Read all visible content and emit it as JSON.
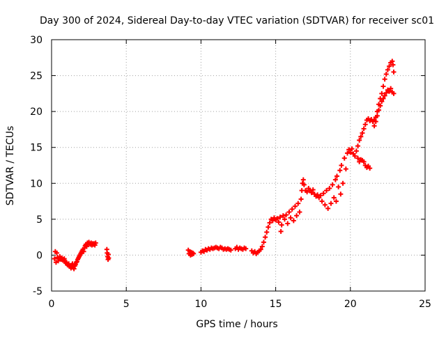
{
  "chart_data": {
    "type": "scatter",
    "title": "Day 300 of 2024, Sidereal Day-to-day VTEC variation (SDTVAR) for receiver sc01",
    "xlabel": "GPS time / hours",
    "ylabel": "SDTVAR / TECUs",
    "xlim": [
      0,
      25
    ],
    "ylim": [
      -5,
      30
    ],
    "xticks": [
      0,
      5,
      10,
      15,
      20,
      25
    ],
    "yticks": [
      -5,
      0,
      5,
      10,
      15,
      20,
      25,
      30
    ],
    "grid": true,
    "marker": "+",
    "color": "#ff0000",
    "series": [
      {
        "name": "sc01",
        "points": [
          [
            0.2,
            -0.5
          ],
          [
            0.25,
            0.5
          ],
          [
            0.3,
            -1.0
          ],
          [
            0.35,
            0.3
          ],
          [
            0.4,
            -0.3
          ],
          [
            0.45,
            -0.8
          ],
          [
            0.5,
            -0.5
          ],
          [
            0.55,
            -0.2
          ],
          [
            0.6,
            -0.4
          ],
          [
            0.65,
            -0.6
          ],
          [
            0.7,
            -0.4
          ],
          [
            0.75,
            -0.7
          ],
          [
            0.8,
            -0.6
          ],
          [
            0.85,
            -0.5
          ],
          [
            0.9,
            -0.9
          ],
          [
            0.95,
            -1.1
          ],
          [
            1.0,
            -1.0
          ],
          [
            1.05,
            -1.3
          ],
          [
            1.1,
            -1.4
          ],
          [
            1.15,
            -1.2
          ],
          [
            1.2,
            -1.5
          ],
          [
            1.25,
            -1.6
          ],
          [
            1.3,
            -1.8
          ],
          [
            1.35,
            -1.4
          ],
          [
            1.4,
            -1.2
          ],
          [
            1.45,
            -1.7
          ],
          [
            1.5,
            -1.9
          ],
          [
            1.55,
            -1.5
          ],
          [
            1.6,
            -1.3
          ],
          [
            1.65,
            -1.0
          ],
          [
            1.7,
            -0.9
          ],
          [
            1.75,
            -0.6
          ],
          [
            1.8,
            -0.4
          ],
          [
            1.85,
            -0.2
          ],
          [
            1.9,
            0.0
          ],
          [
            1.95,
            0.2
          ],
          [
            2.0,
            0.4
          ],
          [
            2.05,
            0.6
          ],
          [
            2.1,
            0.8
          ],
          [
            2.15,
            0.5
          ],
          [
            2.2,
            1.0
          ],
          [
            2.25,
            1.3
          ],
          [
            2.3,
            1.5
          ],
          [
            2.35,
            1.2
          ],
          [
            2.4,
            1.7
          ],
          [
            2.45,
            1.5
          ],
          [
            2.5,
            1.8
          ],
          [
            2.55,
            1.6
          ],
          [
            2.6,
            1.5
          ],
          [
            2.65,
            1.7
          ],
          [
            2.7,
            1.4
          ],
          [
            2.75,
            1.6
          ],
          [
            2.8,
            1.5
          ],
          [
            2.85,
            1.6
          ],
          [
            2.9,
            1.4
          ],
          [
            2.95,
            1.7
          ],
          [
            3.7,
            0.8
          ],
          [
            3.72,
            0.3
          ],
          [
            3.75,
            -0.2
          ],
          [
            3.78,
            -0.6
          ],
          [
            3.8,
            0.1
          ],
          [
            3.82,
            -0.4
          ],
          [
            9.15,
            0.7
          ],
          [
            9.2,
            0.2
          ],
          [
            9.25,
            0.5
          ],
          [
            9.3,
            0.0
          ],
          [
            9.35,
            0.4
          ],
          [
            9.4,
            0.1
          ],
          [
            9.45,
            0.3
          ],
          [
            9.5,
            0.2
          ],
          [
            10.0,
            0.4
          ],
          [
            10.1,
            0.6
          ],
          [
            10.2,
            0.5
          ],
          [
            10.3,
            0.8
          ],
          [
            10.4,
            0.7
          ],
          [
            10.5,
            0.9
          ],
          [
            10.6,
            0.8
          ],
          [
            10.7,
            1.0
          ],
          [
            10.8,
            0.9
          ],
          [
            10.9,
            1.0
          ],
          [
            11.0,
            1.1
          ],
          [
            11.1,
            1.0
          ],
          [
            11.2,
            0.9
          ],
          [
            11.3,
            1.1
          ],
          [
            11.4,
            1.0
          ],
          [
            11.5,
            0.8
          ],
          [
            11.6,
            0.9
          ],
          [
            11.7,
            0.8
          ],
          [
            11.8,
            0.9
          ],
          [
            11.9,
            0.8
          ],
          [
            12.0,
            0.7
          ],
          [
            12.3,
            0.9
          ],
          [
            12.4,
            1.1
          ],
          [
            12.5,
            0.8
          ],
          [
            12.6,
            1.0
          ],
          [
            12.7,
            0.9
          ],
          [
            12.8,
            0.8
          ],
          [
            12.9,
            1.0
          ],
          [
            13.0,
            0.9
          ],
          [
            13.4,
            0.6
          ],
          [
            13.5,
            0.3
          ],
          [
            13.6,
            0.5
          ],
          [
            13.7,
            0.2
          ],
          [
            13.8,
            0.4
          ],
          [
            13.9,
            0.6
          ],
          [
            14.0,
            0.8
          ],
          [
            14.1,
            1.2
          ],
          [
            14.2,
            1.8
          ],
          [
            14.3,
            2.5
          ],
          [
            14.4,
            3.2
          ],
          [
            14.5,
            3.9
          ],
          [
            14.6,
            4.5
          ],
          [
            14.7,
            5.0
          ],
          [
            14.8,
            4.8
          ],
          [
            14.9,
            5.2
          ],
          [
            15.0,
            4.9
          ],
          [
            15.1,
            5.1
          ],
          [
            15.2,
            4.6
          ],
          [
            15.3,
            5.3
          ],
          [
            15.35,
            3.3
          ],
          [
            15.4,
            4.2
          ],
          [
            15.5,
            5.5
          ],
          [
            15.6,
            5.0
          ],
          [
            15.7,
            5.6
          ],
          [
            15.8,
            4.4
          ],
          [
            15.9,
            6.0
          ],
          [
            16.0,
            5.2
          ],
          [
            16.1,
            6.4
          ],
          [
            16.2,
            4.8
          ],
          [
            16.3,
            6.8
          ],
          [
            16.4,
            5.5
          ],
          [
            16.5,
            7.2
          ],
          [
            16.6,
            6.0
          ],
          [
            16.7,
            7.8
          ],
          [
            16.75,
            9.0
          ],
          [
            16.8,
            10.0
          ],
          [
            16.85,
            10.5
          ],
          [
            16.9,
            9.8
          ],
          [
            17.0,
            9.0
          ],
          [
            17.1,
            8.8
          ],
          [
            17.2,
            9.3
          ],
          [
            17.3,
            9.0
          ],
          [
            17.4,
            8.7
          ],
          [
            17.5,
            9.1
          ],
          [
            17.6,
            8.5
          ],
          [
            17.7,
            8.2
          ],
          [
            17.8,
            8.4
          ],
          [
            17.9,
            8.0
          ],
          [
            18.0,
            8.3
          ],
          [
            18.1,
            7.5
          ],
          [
            18.2,
            8.6
          ],
          [
            18.3,
            7.0
          ],
          [
            18.4,
            9.0
          ],
          [
            18.5,
            6.5
          ],
          [
            18.6,
            9.3
          ],
          [
            18.7,
            7.2
          ],
          [
            18.8,
            9.8
          ],
          [
            18.9,
            8.0
          ],
          [
            19.0,
            10.5
          ],
          [
            19.05,
            7.5
          ],
          [
            19.1,
            11.0
          ],
          [
            19.2,
            9.5
          ],
          [
            19.3,
            11.8
          ],
          [
            19.35,
            8.5
          ],
          [
            19.4,
            12.5
          ],
          [
            19.5,
            10.0
          ],
          [
            19.6,
            13.5
          ],
          [
            19.7,
            12.0
          ],
          [
            19.8,
            14.2
          ],
          [
            19.9,
            14.7
          ],
          [
            20.0,
            14.3
          ],
          [
            20.1,
            14.8
          ],
          [
            20.2,
            14.1
          ],
          [
            20.3,
            13.8
          ],
          [
            20.4,
            14.5
          ],
          [
            20.5,
            13.5
          ],
          [
            20.6,
            13.0
          ],
          [
            20.7,
            13.3
          ],
          [
            20.8,
            13.2
          ],
          [
            20.9,
            13.0
          ],
          [
            21.0,
            12.5
          ],
          [
            21.1,
            12.2
          ],
          [
            21.2,
            12.4
          ],
          [
            21.3,
            12.1
          ],
          [
            20.5,
            15.2
          ],
          [
            20.6,
            16.0
          ],
          [
            20.7,
            16.5
          ],
          [
            20.8,
            17.0
          ],
          [
            20.9,
            17.6
          ],
          [
            21.0,
            18.2
          ],
          [
            21.1,
            18.8
          ],
          [
            21.2,
            19.0
          ],
          [
            21.3,
            18.7
          ],
          [
            21.4,
            18.9
          ],
          [
            21.5,
            18.6
          ],
          [
            21.6,
            18.8
          ],
          [
            21.7,
            19.2
          ],
          [
            21.8,
            20.0
          ],
          [
            21.9,
            21.0
          ],
          [
            22.0,
            21.8
          ],
          [
            22.1,
            22.5
          ],
          [
            22.2,
            23.5
          ],
          [
            22.3,
            24.5
          ],
          [
            22.4,
            25.2
          ],
          [
            22.5,
            25.8
          ],
          [
            22.6,
            26.3
          ],
          [
            22.7,
            26.8
          ],
          [
            22.8,
            27.0
          ],
          [
            22.85,
            26.5
          ],
          [
            22.9,
            25.5
          ],
          [
            21.6,
            18.0
          ],
          [
            21.7,
            18.6
          ],
          [
            21.8,
            19.4
          ],
          [
            21.9,
            20.2
          ],
          [
            22.0,
            20.8
          ],
          [
            22.1,
            21.4
          ],
          [
            22.2,
            21.8
          ],
          [
            22.3,
            22.2
          ],
          [
            22.4,
            22.6
          ],
          [
            22.5,
            23.0
          ],
          [
            22.6,
            22.8
          ],
          [
            22.7,
            23.2
          ],
          [
            22.8,
            22.7
          ],
          [
            22.9,
            22.5
          ]
        ]
      }
    ]
  }
}
